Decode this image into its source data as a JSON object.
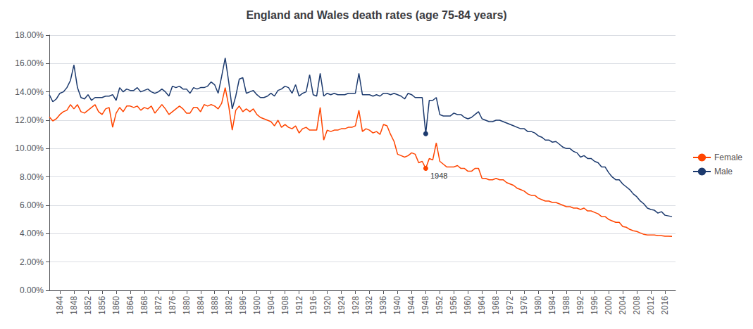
{
  "chart_data": {
    "type": "line",
    "title": "England and Wales death rates (age 75-84 years)",
    "x": [
      1841,
      1842,
      1843,
      1844,
      1845,
      1846,
      1847,
      1848,
      1849,
      1850,
      1851,
      1852,
      1853,
      1854,
      1855,
      1856,
      1857,
      1858,
      1859,
      1860,
      1861,
      1862,
      1863,
      1864,
      1865,
      1866,
      1867,
      1868,
      1869,
      1870,
      1871,
      1872,
      1873,
      1874,
      1875,
      1876,
      1877,
      1878,
      1879,
      1880,
      1881,
      1882,
      1883,
      1884,
      1885,
      1886,
      1887,
      1888,
      1889,
      1890,
      1891,
      1892,
      1893,
      1894,
      1895,
      1896,
      1897,
      1898,
      1899,
      1900,
      1901,
      1902,
      1903,
      1904,
      1905,
      1906,
      1907,
      1908,
      1909,
      1910,
      1911,
      1912,
      1913,
      1914,
      1915,
      1916,
      1917,
      1918,
      1919,
      1920,
      1921,
      1922,
      1923,
      1924,
      1925,
      1926,
      1927,
      1928,
      1929,
      1930,
      1931,
      1932,
      1933,
      1934,
      1935,
      1936,
      1937,
      1938,
      1939,
      1940,
      1941,
      1942,
      1943,
      1944,
      1945,
      1946,
      1947,
      1948,
      1949,
      1950,
      1951,
      1952,
      1953,
      1954,
      1955,
      1956,
      1957,
      1958,
      1959,
      1960,
      1961,
      1962,
      1963,
      1964,
      1965,
      1966,
      1967,
      1968,
      1969,
      1970,
      1971,
      1972,
      1973,
      1974,
      1975,
      1976,
      1977,
      1978,
      1979,
      1980,
      1981,
      1982,
      1983,
      1984,
      1985,
      1986,
      1987,
      1988,
      1989,
      1990,
      1991,
      1992,
      1993,
      1994,
      1995,
      1996,
      1997,
      1998,
      1999,
      2000,
      2001,
      2002,
      2003,
      2004,
      2005,
      2006,
      2007,
      2008,
      2009,
      2010,
      2011,
      2012,
      2013,
      2014,
      2015,
      2016,
      2017,
      2018
    ],
    "series": [
      {
        "name": "Female",
        "color": "#FF4500",
        "values": [
          0.1224,
          0.1195,
          0.121,
          0.124,
          0.126,
          0.127,
          0.131,
          0.128,
          0.131,
          0.126,
          0.125,
          0.127,
          0.129,
          0.131,
          0.126,
          0.124,
          0.128,
          0.129,
          0.115,
          0.125,
          0.129,
          0.126,
          0.13,
          0.13,
          0.129,
          0.13,
          0.127,
          0.129,
          0.128,
          0.13,
          0.125,
          0.128,
          0.131,
          0.128,
          0.124,
          0.126,
          0.128,
          0.13,
          0.128,
          0.125,
          0.125,
          0.129,
          0.129,
          0.126,
          0.131,
          0.13,
          0.131,
          0.13,
          0.128,
          0.132,
          0.143,
          0.13,
          0.113,
          0.127,
          0.13,
          0.126,
          0.128,
          0.126,
          0.128,
          0.124,
          0.122,
          0.121,
          0.12,
          0.119,
          0.116,
          0.12,
          0.115,
          0.117,
          0.115,
          0.114,
          0.116,
          0.111,
          0.114,
          0.115,
          0.113,
          0.113,
          0.113,
          0.129,
          0.106,
          0.113,
          0.112,
          0.113,
          0.113,
          0.114,
          0.114,
          0.115,
          0.115,
          0.116,
          0.127,
          0.112,
          0.114,
          0.113,
          0.111,
          0.112,
          0.11,
          0.117,
          0.116,
          0.11,
          0.105,
          0.096,
          0.095,
          0.094,
          0.095,
          0.097,
          0.096,
          0.09,
          0.091,
          0.086,
          0.093,
          0.092,
          0.104,
          0.091,
          0.089,
          0.087,
          0.087,
          0.087,
          0.088,
          0.086,
          0.086,
          0.084,
          0.084,
          0.086,
          0.086,
          0.079,
          0.079,
          0.078,
          0.078,
          0.079,
          0.078,
          0.078,
          0.076,
          0.075,
          0.074,
          0.072,
          0.071,
          0.07,
          0.068,
          0.067,
          0.067,
          0.065,
          0.064,
          0.063,
          0.063,
          0.062,
          0.062,
          0.061,
          0.06,
          0.059,
          0.059,
          0.058,
          0.058,
          0.057,
          0.058,
          0.056,
          0.056,
          0.055,
          0.054,
          0.052,
          0.052,
          0.05,
          0.049,
          0.048,
          0.048,
          0.045,
          0.0445,
          0.043,
          0.042,
          0.0415,
          0.0405,
          0.0395,
          0.039,
          0.039,
          0.039,
          0.0385,
          0.0385,
          0.0382,
          0.0382,
          0.038
        ]
      },
      {
        "name": "Male",
        "color": "#1C3A6E",
        "values": [
          0.138,
          0.133,
          0.135,
          0.139,
          0.14,
          0.143,
          0.148,
          0.159,
          0.143,
          0.136,
          0.135,
          0.138,
          0.134,
          0.136,
          0.136,
          0.136,
          0.137,
          0.137,
          0.138,
          0.134,
          0.143,
          0.14,
          0.142,
          0.141,
          0.141,
          0.143,
          0.14,
          0.141,
          0.142,
          0.14,
          0.139,
          0.14,
          0.142,
          0.14,
          0.137,
          0.144,
          0.143,
          0.144,
          0.142,
          0.142,
          0.139,
          0.143,
          0.142,
          0.143,
          0.143,
          0.144,
          0.147,
          0.145,
          0.139,
          0.151,
          0.164,
          0.147,
          0.128,
          0.137,
          0.149,
          0.15,
          0.139,
          0.14,
          0.141,
          0.138,
          0.136,
          0.136,
          0.137,
          0.139,
          0.137,
          0.141,
          0.142,
          0.144,
          0.143,
          0.139,
          0.145,
          0.137,
          0.139,
          0.14,
          0.152,
          0.138,
          0.137,
          0.153,
          0.137,
          0.139,
          0.138,
          0.139,
          0.138,
          0.138,
          0.138,
          0.139,
          0.139,
          0.139,
          0.153,
          0.138,
          0.138,
          0.138,
          0.137,
          0.138,
          0.137,
          0.139,
          0.139,
          0.138,
          0.139,
          0.138,
          0.137,
          0.135,
          0.139,
          0.138,
          0.136,
          0.136,
          0.136,
          0.1105,
          0.134,
          0.134,
          0.136,
          0.124,
          0.123,
          0.123,
          0.123,
          0.125,
          0.124,
          0.124,
          0.122,
          0.121,
          0.122,
          0.124,
          0.126,
          0.121,
          0.12,
          0.119,
          0.119,
          0.12,
          0.12,
          0.119,
          0.118,
          0.117,
          0.116,
          0.115,
          0.114,
          0.114,
          0.112,
          0.112,
          0.111,
          0.109,
          0.108,
          0.106,
          0.106,
          0.1045,
          0.105,
          0.103,
          0.101,
          0.1,
          0.1,
          0.098,
          0.097,
          0.094,
          0.095,
          0.093,
          0.093,
          0.091,
          0.09,
          0.087,
          0.087,
          0.083,
          0.08,
          0.078,
          0.078,
          0.075,
          0.073,
          0.071,
          0.068,
          0.066,
          0.063,
          0.061,
          0.058,
          0.057,
          0.0565,
          0.0545,
          0.0555,
          0.053,
          0.0525,
          0.052
        ]
      }
    ],
    "annotations": [
      {
        "text": "1948",
        "x": 1948
      }
    ],
    "xlim": [
      1841,
      2019
    ],
    "xticks": [
      1844,
      1848,
      1852,
      1856,
      1860,
      1864,
      1868,
      1872,
      1876,
      1880,
      1884,
      1888,
      1892,
      1896,
      1900,
      1904,
      1908,
      1912,
      1916,
      1920,
      1924,
      1928,
      1932,
      1936,
      1940,
      1944,
      1948,
      1952,
      1956,
      1960,
      1964,
      1968,
      1972,
      1976,
      1980,
      1984,
      1988,
      1992,
      1996,
      2000,
      2004,
      2008,
      2012,
      2016
    ],
    "ylim": [
      0,
      0.18
    ],
    "yticks": [
      {
        "value": 0,
        "label": "0.00%"
      },
      {
        "value": 0.02,
        "label": "2.00%"
      },
      {
        "value": 0.04,
        "label": "4.00%"
      },
      {
        "value": 0.06,
        "label": "6.00%"
      },
      {
        "value": 0.08,
        "label": "8.00%"
      },
      {
        "value": 0.1,
        "label": "10.00%"
      },
      {
        "value": 0.12,
        "label": "12.00%"
      },
      {
        "value": 0.14,
        "label": "14.00%"
      },
      {
        "value": 0.16,
        "label": "16.00%"
      },
      {
        "value": 0.18,
        "label": "18.00%"
      }
    ],
    "grid": "y",
    "legend": "right"
  }
}
